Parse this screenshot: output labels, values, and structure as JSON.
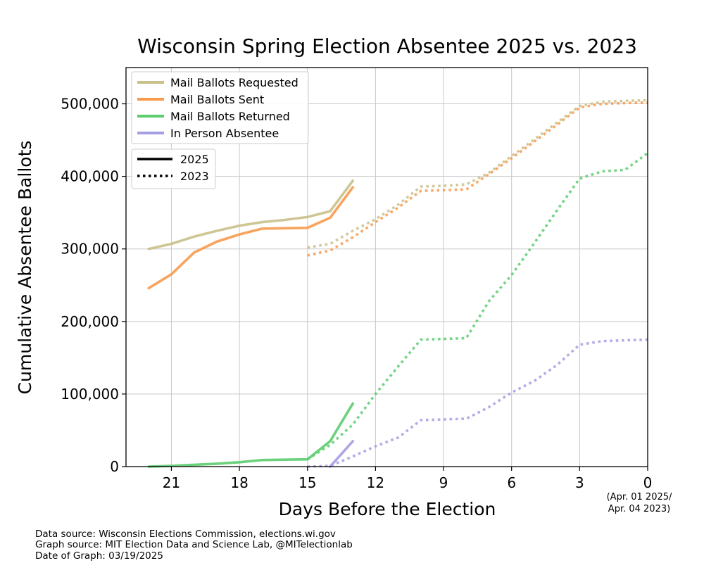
{
  "chart_data": {
    "type": "line",
    "title": "Wisconsin Spring Election Absentee 2025 vs. 2023",
    "xlabel": "Days Before the Election",
    "ylabel": "Cumulative Absentee Ballots",
    "xlim": [
      23,
      0
    ],
    "ylim": [
      0,
      550000
    ],
    "x_ticks": [
      21,
      18,
      15,
      12,
      9,
      6,
      3,
      0
    ],
    "x_tick_labels": [
      "21",
      "18",
      "15",
      "12",
      "9",
      "6",
      "3",
      "0"
    ],
    "y_ticks": [
      0,
      100000,
      200000,
      300000,
      400000,
      500000
    ],
    "y_tick_labels": [
      "0",
      "100,000",
      "200,000",
      "300,000",
      "400,000",
      "500,000"
    ],
    "election_date_note": [
      "(Apr. 01 2025/",
      "Apr. 04 2023)"
    ],
    "grid": true,
    "legend_series": {
      "placement": "top-left",
      "entries": [
        {
          "label": "Mail Ballots Requested",
          "color": "#c9c08a"
        },
        {
          "label": "Mail Ballots Sent",
          "color": "#f89a4c"
        },
        {
          "label": "Mail Ballots Returned",
          "color": "#5ccc6e"
        },
        {
          "label": "In Person Absentee",
          "color": "#a49ee2"
        }
      ]
    },
    "legend_years": {
      "placement": "top-left",
      "entries": [
        {
          "label": "2025",
          "style": "solid"
        },
        {
          "label": "2023",
          "style": "dotted"
        }
      ]
    },
    "series": [
      {
        "name": "Mail Ballots Requested",
        "year": "2025",
        "color": "#c9c08a",
        "style": "solid",
        "x": [
          22,
          21,
          20,
          19,
          18,
          17,
          16,
          15,
          14,
          13
        ],
        "y": [
          300000,
          307000,
          317000,
          325000,
          332000,
          337000,
          340000,
          344000,
          352000,
          394000
        ]
      },
      {
        "name": "Mail Ballots Sent",
        "year": "2025",
        "color": "#f89a4c",
        "style": "solid",
        "x": [
          22,
          21,
          20,
          19,
          18,
          17,
          16,
          15,
          14,
          13
        ],
        "y": [
          246000,
          265000,
          295000,
          310000,
          320000,
          328000,
          328500,
          329000,
          343000,
          385000
        ]
      },
      {
        "name": "Mail Ballots Returned",
        "year": "2025",
        "color": "#5ccc6e",
        "style": "solid",
        "x": [
          22,
          21,
          20,
          19,
          18,
          17,
          16,
          15,
          14,
          13
        ],
        "y": [
          0,
          1000,
          2500,
          4000,
          6000,
          9000,
          9500,
          10000,
          35000,
          87000
        ]
      },
      {
        "name": "In Person Absentee",
        "year": "2025",
        "color": "#a49ee2",
        "style": "solid",
        "x": [
          14,
          13
        ],
        "y": [
          0,
          35000
        ]
      },
      {
        "name": "Mail Ballots Requested",
        "year": "2023",
        "color": "#c9c08a",
        "style": "dotted",
        "x": [
          15,
          14,
          13,
          12,
          11,
          10,
          9,
          8,
          7,
          6,
          5,
          4,
          3,
          2,
          1,
          0
        ],
        "y": [
          302000,
          307000,
          325000,
          341000,
          361000,
          386000,
          387000,
          389000,
          405000,
          428000,
          451000,
          474000,
          497000,
          503000,
          504000,
          505000
        ]
      },
      {
        "name": "Mail Ballots Sent",
        "year": "2023",
        "color": "#f89a4c",
        "style": "dotted",
        "x": [
          15,
          14,
          13,
          12,
          11,
          10,
          9,
          8,
          7,
          6,
          5,
          4,
          3,
          2,
          1,
          0
        ],
        "y": [
          291000,
          298000,
          316000,
          337000,
          357000,
          380000,
          381000,
          382000,
          403000,
          425000,
          448000,
          471000,
          495000,
          500000,
          501000,
          502000
        ]
      },
      {
        "name": "Mail Ballots Returned",
        "year": "2023",
        "color": "#5ccc6e",
        "style": "dotted",
        "x": [
          15,
          14,
          13,
          12,
          11,
          10,
          9,
          8,
          7,
          6,
          5,
          4,
          3,
          2,
          1,
          0
        ],
        "y": [
          10000,
          30000,
          58000,
          100000,
          138000,
          175000,
          176000,
          177000,
          228000,
          264000,
          308000,
          353000,
          397000,
          407000,
          409000,
          432000
        ]
      },
      {
        "name": "In Person Absentee",
        "year": "2023",
        "color": "#a49ee2",
        "style": "dotted",
        "x": [
          15,
          14,
          13,
          12,
          11,
          10,
          9,
          8,
          7,
          6,
          5,
          4,
          3,
          2,
          1,
          0
        ],
        "y": [
          0,
          1000,
          14000,
          28000,
          40000,
          64000,
          65000,
          66000,
          82000,
          102000,
          118000,
          140000,
          168000,
          173000,
          174000,
          175000
        ]
      }
    ]
  },
  "footer": {
    "line1": "Data source: Wisconsin Elections Commission, elections.wi.gov",
    "line2": "Graph source: MIT Election Data and Science Lab, @MITelectionlab",
    "line3": "Date of Graph: 03/19/2025"
  }
}
